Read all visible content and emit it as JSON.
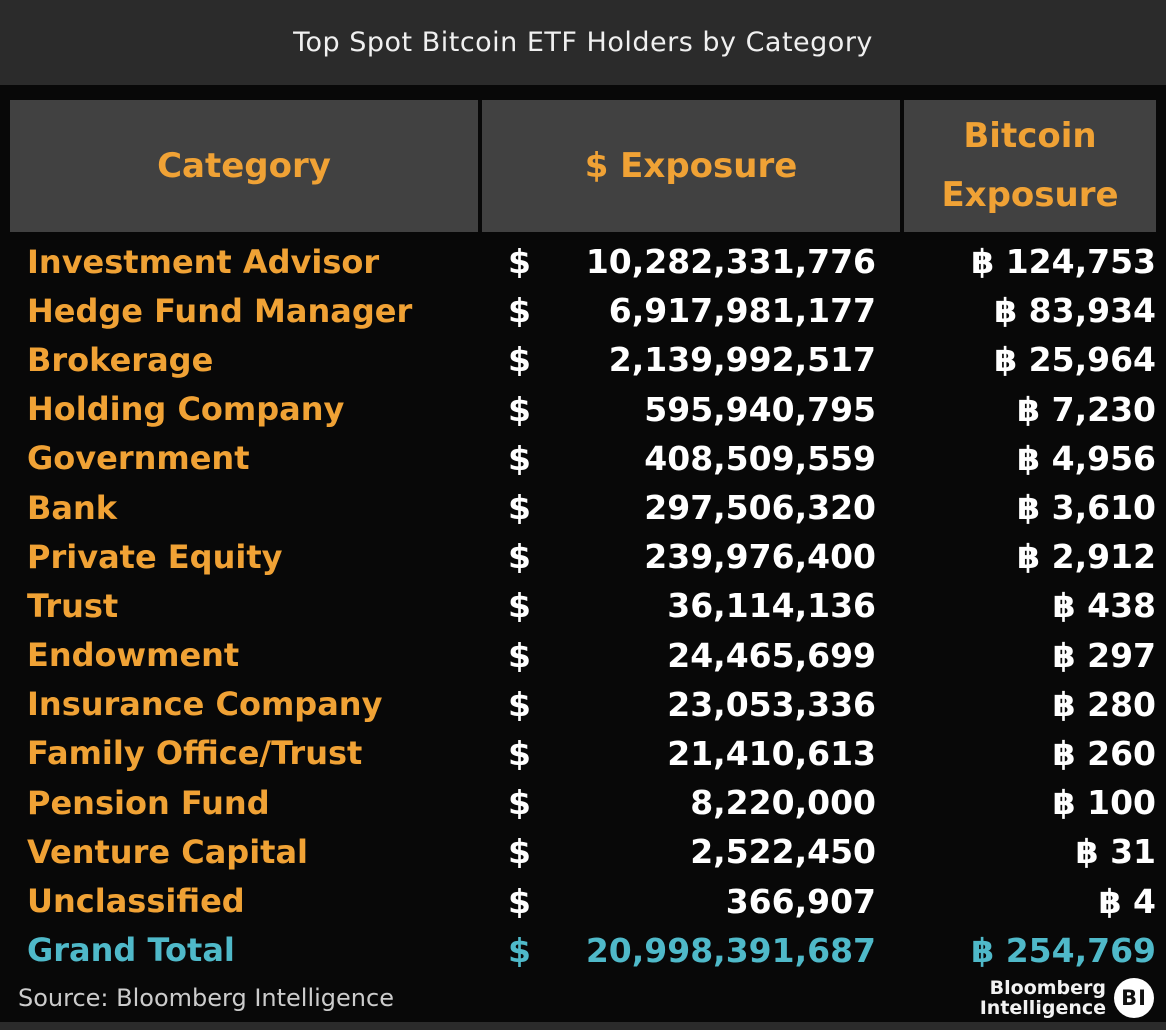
{
  "title": "Top Spot Bitcoin ETF Holders by Category",
  "colors": {
    "accent_orange": "#F0A235",
    "accent_teal": "#4FB9C9",
    "header_cell_bg": "#414141",
    "title_band_bg": "#2B2B2B",
    "body_bg": "#080808",
    "value_white": "#FFFFFF"
  },
  "table": {
    "headers": [
      "Category",
      "$ Exposure",
      "Bitcoin Exposure"
    ],
    "currency_symbol": "$",
    "btc_symbol": "฿",
    "rows": [
      {
        "category": "Investment Advisor",
        "usd": "10,282,331,776",
        "btc": "124,753"
      },
      {
        "category": "Hedge Fund Manager",
        "usd": "6,917,981,177",
        "btc": "83,934"
      },
      {
        "category": "Brokerage",
        "usd": "2,139,992,517",
        "btc": "25,964"
      },
      {
        "category": "Holding Company",
        "usd": "595,940,795",
        "btc": "7,230"
      },
      {
        "category": "Government",
        "usd": "408,509,559",
        "btc": "4,956"
      },
      {
        "category": "Bank",
        "usd": "297,506,320",
        "btc": "3,610"
      },
      {
        "category": "Private Equity",
        "usd": "239,976,400",
        "btc": "2,912"
      },
      {
        "category": "Trust",
        "usd": "36,114,136",
        "btc": "438"
      },
      {
        "category": "Endowment",
        "usd": "24,465,699",
        "btc": "297"
      },
      {
        "category": "Insurance Company",
        "usd": "23,053,336",
        "btc": "280"
      },
      {
        "category": "Family Office/Trust",
        "usd": "21,410,613",
        "btc": "260"
      },
      {
        "category": "Pension Fund",
        "usd": "8,220,000",
        "btc": "100"
      },
      {
        "category": "Venture Capital",
        "usd": "2,522,450",
        "btc": "31"
      },
      {
        "category": "Unclassified",
        "usd": "366,907",
        "btc": "4"
      },
      {
        "category": "Grand Total",
        "usd": "20,998,391,687",
        "btc": "254,769",
        "is_total": true
      }
    ]
  },
  "footer": {
    "source": "Source: Bloomberg Intelligence",
    "logo_line1": "Bloomberg",
    "logo_line2": "Intelligence",
    "logo_badge": "BI"
  },
  "chart_data": {
    "type": "table",
    "title": "Top Spot Bitcoin ETF Holders by Category",
    "columns": [
      "Category",
      "$ Exposure",
      "Bitcoin Exposure"
    ],
    "rows": [
      [
        "Investment Advisor",
        10282331776,
        124753
      ],
      [
        "Hedge Fund Manager",
        6917981177,
        83934
      ],
      [
        "Brokerage",
        2139992517,
        25964
      ],
      [
        "Holding Company",
        595940795,
        7230
      ],
      [
        "Government",
        408509559,
        4956
      ],
      [
        "Bank",
        297506320,
        3610
      ],
      [
        "Private Equity",
        239976400,
        2912
      ],
      [
        "Trust",
        36114136,
        438
      ],
      [
        "Endowment",
        24465699,
        297
      ],
      [
        "Insurance Company",
        23053336,
        280
      ],
      [
        "Family Office/Trust",
        21410613,
        260
      ],
      [
        "Pension Fund",
        8220000,
        100
      ],
      [
        "Venture Capital",
        2522450,
        31
      ],
      [
        "Unclassified",
        366907,
        4
      ],
      [
        "Grand Total",
        20998391687,
        254769
      ]
    ],
    "source": "Source: Bloomberg Intelligence"
  }
}
